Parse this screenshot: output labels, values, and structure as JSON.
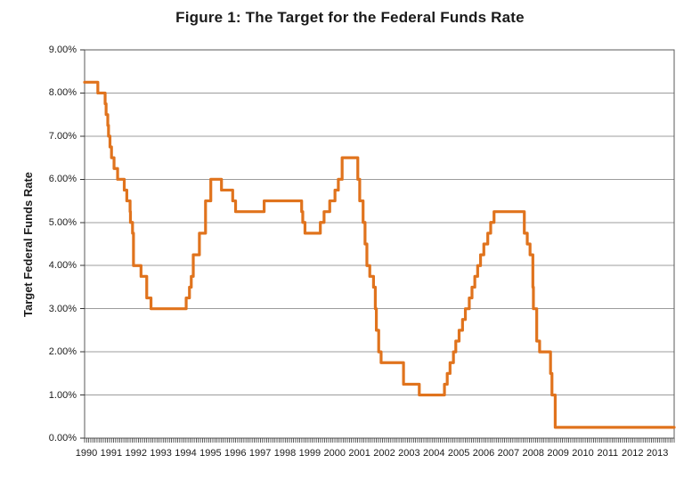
{
  "chart_data": {
    "type": "line",
    "title": "Figure 1: The Target for the Federal Funds Rate",
    "xlabel": "",
    "ylabel": "Target Federal Funds Rate",
    "ylim": [
      0,
      9
    ],
    "xlim": [
      1990,
      2013.75
    ],
    "grid": "horizontal",
    "legend": "none",
    "y_tick_labels": [
      "0.00%",
      "1.00%",
      "2.00%",
      "3.00%",
      "4.00%",
      "5.00%",
      "6.00%",
      "7.00%",
      "8.00%",
      "9.00%"
    ],
    "x_tick_labels": [
      "1990",
      "1991",
      "1992",
      "1993",
      "1994",
      "1995",
      "1996",
      "1997",
      "1998",
      "1999",
      "2000",
      "2001",
      "2002",
      "2003",
      "2004",
      "2005",
      "2006",
      "2007",
      "2008",
      "2009",
      "2010",
      "2011",
      "2012",
      "2013"
    ],
    "x_minor_tick_interval_months": 1,
    "line_color": "#E0731D",
    "grid_color": "#9C9C9C",
    "frame_color": "#595959",
    "axis_color": "#333333",
    "series": [
      {
        "name": "Target Federal Funds Rate",
        "unit": "percent",
        "interpolation": "step-after",
        "points": [
          [
            "1990-01-01",
            8.25
          ],
          [
            "1990-07-13",
            8.0
          ],
          [
            "1990-10-29",
            7.75
          ],
          [
            "1990-11-13",
            7.5
          ],
          [
            "1990-12-07",
            7.25
          ],
          [
            "1990-12-18",
            7.0
          ],
          [
            "1991-01-09",
            6.75
          ],
          [
            "1991-02-01",
            6.5
          ],
          [
            "1991-03-08",
            6.25
          ],
          [
            "1991-04-30",
            6.0
          ],
          [
            "1991-08-06",
            5.75
          ],
          [
            "1991-09-13",
            5.5
          ],
          [
            "1991-10-31",
            5.25
          ],
          [
            "1991-11-06",
            5.0
          ],
          [
            "1991-12-06",
            4.75
          ],
          [
            "1991-12-20",
            4.0
          ],
          [
            "1992-04-09",
            3.75
          ],
          [
            "1992-07-02",
            3.25
          ],
          [
            "1992-09-04",
            3.0
          ],
          [
            "1994-02-04",
            3.25
          ],
          [
            "1994-03-22",
            3.5
          ],
          [
            "1994-04-18",
            3.75
          ],
          [
            "1994-05-17",
            4.25
          ],
          [
            "1994-08-16",
            4.75
          ],
          [
            "1994-11-15",
            5.5
          ],
          [
            "1995-02-01",
            6.0
          ],
          [
            "1995-07-06",
            5.75
          ],
          [
            "1995-12-19",
            5.5
          ],
          [
            "1996-01-31",
            5.25
          ],
          [
            "1997-03-25",
            5.5
          ],
          [
            "1998-09-29",
            5.25
          ],
          [
            "1998-10-15",
            5.0
          ],
          [
            "1998-11-17",
            4.75
          ],
          [
            "1999-06-30",
            5.0
          ],
          [
            "1999-08-24",
            5.25
          ],
          [
            "1999-11-16",
            5.5
          ],
          [
            "2000-02-02",
            5.75
          ],
          [
            "2000-03-21",
            6.0
          ],
          [
            "2000-05-16",
            6.5
          ],
          [
            "2001-01-03",
            6.0
          ],
          [
            "2001-01-31",
            5.5
          ],
          [
            "2001-03-20",
            5.0
          ],
          [
            "2001-04-18",
            4.5
          ],
          [
            "2001-05-15",
            4.0
          ],
          [
            "2001-06-27",
            3.75
          ],
          [
            "2001-08-21",
            3.5
          ],
          [
            "2001-09-17",
            3.0
          ],
          [
            "2001-10-02",
            2.5
          ],
          [
            "2001-11-06",
            2.0
          ],
          [
            "2001-12-11",
            1.75
          ],
          [
            "2002-11-06",
            1.25
          ],
          [
            "2003-06-25",
            1.0
          ],
          [
            "2004-06-30",
            1.25
          ],
          [
            "2004-08-10",
            1.5
          ],
          [
            "2004-09-21",
            1.75
          ],
          [
            "2004-11-10",
            2.0
          ],
          [
            "2004-12-14",
            2.25
          ],
          [
            "2005-02-02",
            2.5
          ],
          [
            "2005-03-22",
            2.75
          ],
          [
            "2005-05-03",
            3.0
          ],
          [
            "2005-06-30",
            3.25
          ],
          [
            "2005-08-09",
            3.5
          ],
          [
            "2005-09-20",
            3.75
          ],
          [
            "2005-11-01",
            4.0
          ],
          [
            "2005-12-13",
            4.25
          ],
          [
            "2006-01-31",
            4.5
          ],
          [
            "2006-03-28",
            4.75
          ],
          [
            "2006-05-10",
            5.0
          ],
          [
            "2006-06-29",
            5.25
          ],
          [
            "2007-09-18",
            4.75
          ],
          [
            "2007-10-31",
            4.5
          ],
          [
            "2007-12-11",
            4.25
          ],
          [
            "2008-01-22",
            3.5
          ],
          [
            "2008-01-30",
            3.0
          ],
          [
            "2008-03-18",
            2.25
          ],
          [
            "2008-04-30",
            2.0
          ],
          [
            "2008-10-08",
            1.5
          ],
          [
            "2008-10-29",
            1.0
          ],
          [
            "2008-12-16",
            0.25
          ],
          [
            "2013-09-01",
            0.25
          ]
        ]
      }
    ]
  }
}
